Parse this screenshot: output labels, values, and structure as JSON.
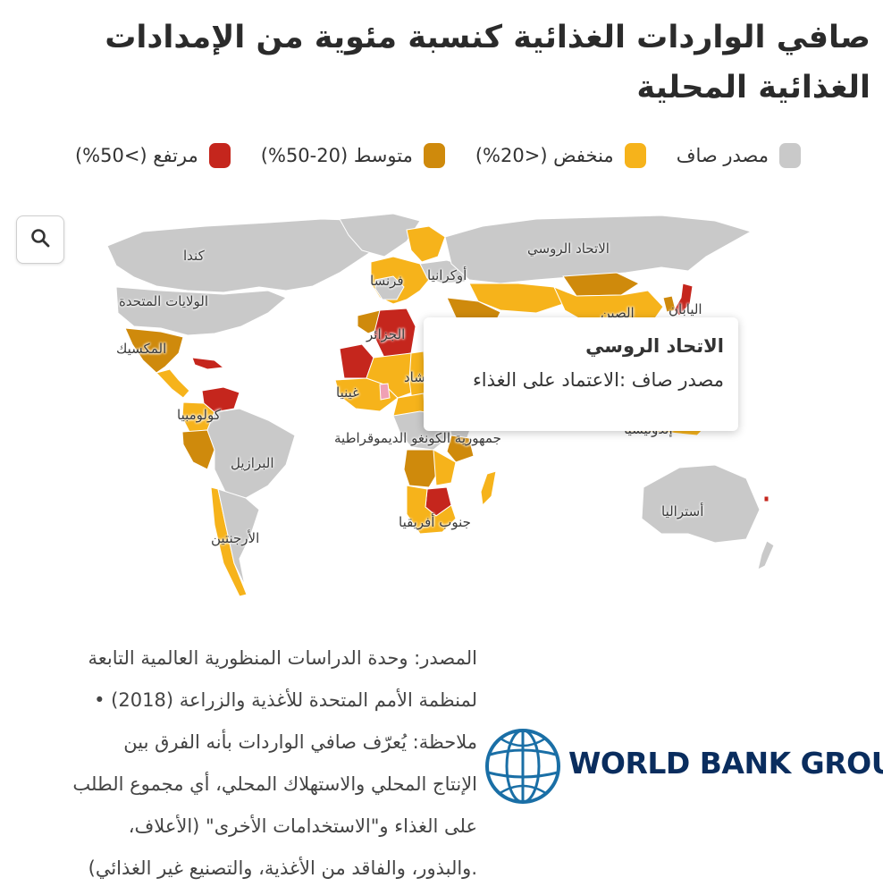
{
  "title": "صافي الواردات الغذائية كنسبة مئوية من الإمدادات الغذائية المحلية",
  "legend": [
    {
      "label": "مصدر صاف",
      "color": "#c9c9c9"
    },
    {
      "label": "منخفض (<20%)",
      "color": "#f6b31b"
    },
    {
      "label": "متوسط (20-50%)",
      "color": "#cf8a0c"
    },
    {
      "label": "مرتفع (>50%)",
      "color": "#c5261d"
    }
  ],
  "colors": {
    "net_exporter": "#c9c9c9",
    "low": "#f6b31b",
    "medium": "#cf8a0c",
    "high": "#c5261d",
    "highlight_pink": "#f0a0b4"
  },
  "search_icon": "search-icon",
  "country_labels": {
    "canada": "كندا",
    "usa": "الولايات المتحدة",
    "mexico": "المكسيك",
    "colombia": "كولومبيا",
    "brazil": "البرازيل",
    "argentina": "الأرجنتين",
    "france": "فرنسا",
    "ukraine": "أوكرانيا",
    "russia": "الاتحاد الروسي",
    "algeria": "الجزائر",
    "guinea": "غينيا",
    "chad": "تشاد",
    "drc": "جمهورية الكونغو الديموقراطية",
    "south_africa": "جنوب أفريقيا",
    "china": "الصين",
    "japan": "اليابان",
    "indonesia": "إندونيسيا",
    "australia": "أستراليا"
  },
  "tooltip": {
    "title": "الاتحاد الروسي",
    "body": "مصدر صاف :الاعتماد على الغذاء"
  },
  "source": {
    "lines": [
      "المصدر: وحدة الدراسات المنظورية العالمية التابعة",
      "لمنظمة الأمم المتحدة للأغذية والزراعة (2018) •",
      "ملاحظة: يُعرّف صافي الواردات بأنه الفرق بين",
      "الإنتاج المحلي والاستهلاك المحلي، أي مجموع الطلب",
      "على الغذاء و\"الاستخدامات الأخرى\" (الأعلاف،",
      ".والبذور، والفاقد من الأغذية، والتصنيع غير الغذائي)"
    ]
  },
  "logo": {
    "text": "WORLD BANK GROUP",
    "color": "#0a2d5e",
    "icon": "globe-icon"
  }
}
